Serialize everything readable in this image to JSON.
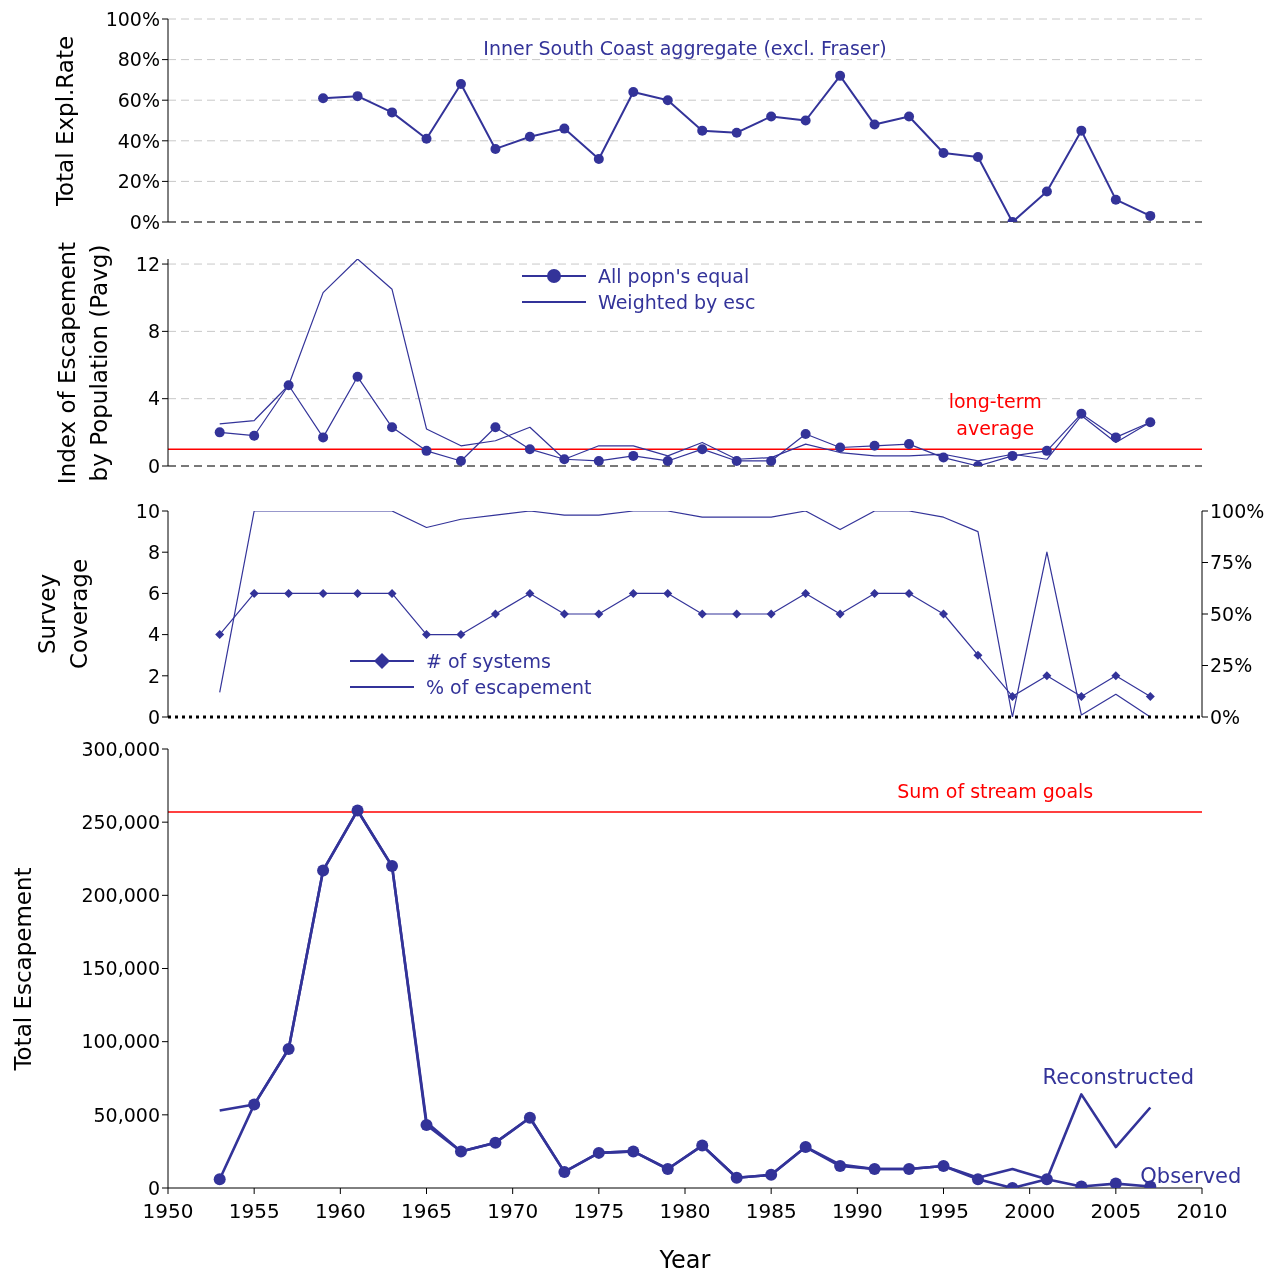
{
  "chart_data": [
    {
      "type": "line",
      "title": "Inner South Coast aggregate (excl. Fraser)",
      "ylabel": "Total Expl.Rate",
      "x": [
        1959,
        1961,
        1963,
        1965,
        1967,
        1969,
        1971,
        1973,
        1975,
        1977,
        1979,
        1981,
        1983,
        1985,
        1987,
        1989,
        1991,
        1993,
        1995,
        1997,
        1999,
        2001,
        2003,
        2005,
        2007
      ],
      "series": [
        {
          "color": "#333399",
          "marker": "circle",
          "values": [
            61,
            62,
            54,
            41,
            68,
            36,
            42,
            46,
            31,
            64,
            60,
            45,
            44,
            52,
            50,
            72,
            48,
            52,
            34,
            32,
            0,
            15,
            45,
            11,
            3
          ]
        }
      ],
      "xlim": [
        1950,
        2010
      ],
      "ylim": [
        0,
        100
      ],
      "yticks": [
        {
          "value": 0,
          "label": "0%"
        },
        {
          "value": 20,
          "label": "20%"
        },
        {
          "value": 40,
          "label": "40%"
        },
        {
          "value": 60,
          "label": "60%"
        },
        {
          "value": 80,
          "label": "80%"
        },
        {
          "value": 100,
          "label": "100%"
        }
      ],
      "grid": "y",
      "tick_labels": "y",
      "legend": false
    },
    {
      "type": "line",
      "ylabel": "Index of Escapement\nby Population (Pavg)",
      "x": [
        1953,
        1955,
        1957,
        1959,
        1961,
        1963,
        1965,
        1967,
        1969,
        1971,
        1973,
        1975,
        1977,
        1979,
        1981,
        1983,
        1985,
        1987,
        1989,
        1991,
        1993,
        1995,
        1997,
        1999,
        2001,
        2003,
        2005,
        2007
      ],
      "series": [
        {
          "name": "All popn's equal",
          "color": "#333399",
          "marker": "circle",
          "values": [
            2.0,
            1.8,
            4.8,
            1.7,
            5.3,
            2.3,
            0.9,
            0.3,
            2.3,
            1.0,
            0.4,
            0.3,
            0.6,
            0.3,
            1.0,
            0.3,
            0.3,
            1.9,
            1.1,
            1.2,
            1.3,
            0.5,
            0.0,
            0.6,
            0.9,
            3.1,
            1.7,
            2.6
          ]
        },
        {
          "name": "Weighted by esc",
          "color": "#333399",
          "marker": "none",
          "values": [
            2.5,
            2.7,
            4.8,
            10.3,
            12.3,
            10.5,
            2.2,
            1.2,
            1.5,
            2.3,
            0.4,
            1.2,
            1.2,
            0.6,
            1.4,
            0.4,
            0.5,
            1.3,
            0.8,
            0.6,
            0.6,
            0.7,
            0.3,
            0.7,
            0.4,
            3.0,
            1.4,
            2.6
          ]
        }
      ],
      "ref_lines": [
        {
          "axis": "y",
          "value": 1.0,
          "label": "long-term average",
          "color": "#ff0000"
        }
      ],
      "xlim": [
        1950,
        2010
      ],
      "ylim": [
        0,
        12.3
      ],
      "yticks": [
        0,
        4,
        8,
        12
      ],
      "grid": "y",
      "tick_labels": "y",
      "legend": "top"
    },
    {
      "type": "line",
      "ylabel": "Survey\nCoverage",
      "x": [
        1953,
        1955,
        1957,
        1959,
        1961,
        1963,
        1965,
        1967,
        1969,
        1971,
        1973,
        1975,
        1977,
        1979,
        1981,
        1983,
        1985,
        1987,
        1989,
        1991,
        1993,
        1995,
        1997,
        1999,
        2001,
        2003,
        2005,
        2007
      ],
      "series": [
        {
          "name": "# of systems",
          "color": "#333399",
          "marker": "diamond",
          "values": [
            4,
            6,
            6,
            6,
            6,
            6,
            4,
            4,
            5,
            6,
            5,
            5,
            6,
            6,
            5,
            5,
            5,
            6,
            5,
            6,
            6,
            5,
            3,
            1,
            2,
            1,
            2,
            1
          ]
        },
        {
          "name": "% of escapement",
          "color": "#333399",
          "marker": "none",
          "axis": "y2",
          "values": [
            12,
            100,
            100,
            100,
            100,
            100,
            92,
            96,
            98,
            100,
            98,
            98,
            100,
            100,
            97,
            97,
            97,
            100,
            91,
            100,
            100,
            97,
            90,
            0,
            80,
            1,
            11,
            0
          ]
        }
      ],
      "xlim": [
        1950,
        2010
      ],
      "ylim": [
        0,
        10
      ],
      "yticks": [
        0,
        2,
        4,
        6,
        8,
        10
      ],
      "y2lim": [
        0,
        100
      ],
      "y2ticks": [
        {
          "value": 0,
          "label": "0%"
        },
        {
          "value": 25,
          "label": "25%"
        },
        {
          "value": 50,
          "label": "50%"
        },
        {
          "value": 75,
          "label": "75%"
        },
        {
          "value": 100,
          "label": "100%"
        }
      ],
      "tick_labels": "y",
      "legend": "bottom left"
    },
    {
      "type": "line",
      "xlabel": "Year",
      "ylabel": "Total Escapement",
      "x": [
        1953,
        1955,
        1957,
        1959,
        1961,
        1963,
        1965,
        1967,
        1969,
        1971,
        1973,
        1975,
        1977,
        1979,
        1981,
        1983,
        1985,
        1987,
        1989,
        1991,
        1993,
        1995,
        1997,
        1999,
        2001,
        2003,
        2005,
        2007
      ],
      "series": [
        {
          "name": "Observed",
          "color": "#333399",
          "marker": "circle",
          "values": [
            6000,
            57000,
            95000,
            217000,
            258000,
            220000,
            43000,
            25000,
            31000,
            48000,
            11000,
            24000,
            25000,
            13000,
            29000,
            7000,
            9000,
            28000,
            15000,
            13000,
            13000,
            15000,
            6000,
            0,
            6000,
            1000,
            3000,
            1000
          ]
        },
        {
          "name": "Reconstructed",
          "color": "#333399",
          "marker": "none",
          "values": [
            53000,
            57000,
            95000,
            217000,
            258000,
            220000,
            45000,
            25000,
            31000,
            48000,
            11000,
            24000,
            25000,
            13000,
            29000,
            7000,
            9000,
            28000,
            16000,
            13000,
            13000,
            15000,
            7000,
            13000,
            6000,
            64000,
            28000,
            55000
          ]
        }
      ],
      "ref_lines": [
        {
          "axis": "y",
          "value": 257000,
          "label": "Sum of stream goals",
          "color": "#ff0000"
        }
      ],
      "xlim": [
        1950,
        2010
      ],
      "xticks": [
        1950,
        1955,
        1960,
        1965,
        1970,
        1975,
        1980,
        1985,
        1990,
        1995,
        2000,
        2005,
        2010
      ],
      "ylim": [
        0,
        300000
      ],
      "yticks": [
        {
          "value": 0,
          "label": "0"
        },
        {
          "value": 50000,
          "label": "50,000"
        },
        {
          "value": 100000,
          "label": "100,000"
        },
        {
          "value": 150000,
          "label": "150,000"
        },
        {
          "value": 200000,
          "label": "200,000"
        },
        {
          "value": 250000,
          "label": "250,000"
        },
        {
          "value": 300000,
          "label": "300,000"
        }
      ],
      "legend": false
    }
  ]
}
